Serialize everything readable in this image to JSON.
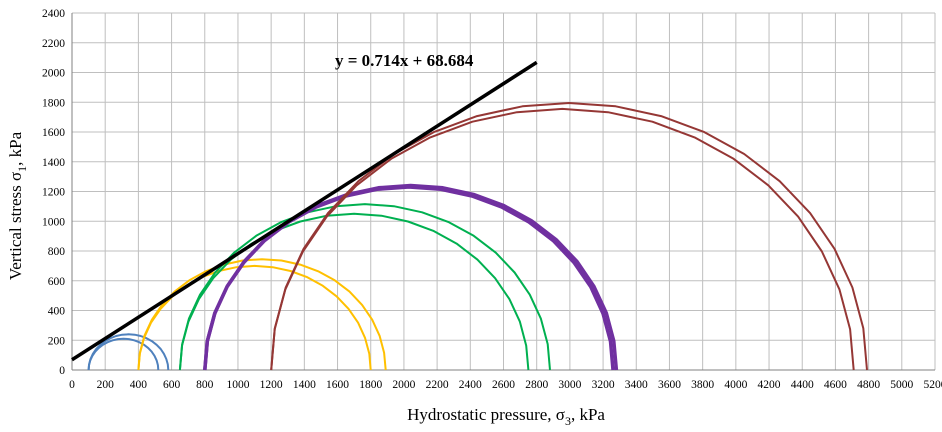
{
  "chart_data": {
    "type": "line",
    "xlabel": {
      "main": "Hydrostatic pressure, σ",
      "sub": "3",
      "unit": ", kPa"
    },
    "ylabel": {
      "main": "Vertical stress σ",
      "sub": "1",
      "unit": ", kPa"
    },
    "xlim": [
      0,
      5200
    ],
    "ylim": [
      0,
      2400
    ],
    "x_ticks": [
      0,
      200,
      400,
      600,
      800,
      1000,
      1200,
      1400,
      1600,
      1800,
      2000,
      2200,
      2400,
      2600,
      2800,
      3000,
      3200,
      3400,
      3600,
      3800,
      4000,
      4200,
      4400,
      4600,
      4800,
      5000,
      5200
    ],
    "y_ticks": [
      0,
      200,
      400,
      600,
      800,
      1000,
      1200,
      1400,
      1600,
      1800,
      2000,
      2200,
      2400
    ],
    "grid": true,
    "legend": "none",
    "fit_line": {
      "label": "y = 0.714x + 68.684",
      "slope": 0.714,
      "intercept": 68.684,
      "x_range": [
        0,
        2800
      ],
      "color": "#000000"
    },
    "series": [
      {
        "color": "#4F81BD",
        "width": 2,
        "circles": [
          {
            "x_left": 100,
            "x_right": 580
          },
          {
            "x_left": 100,
            "x_right": 520
          }
        ]
      },
      {
        "color": "#FFC000",
        "width": 2,
        "circles": [
          {
            "x_left": 400,
            "x_right": 1890
          },
          {
            "x_left": 400,
            "x_right": 1800
          }
        ]
      },
      {
        "color": "#00B050",
        "width": 2,
        "circles": [
          {
            "x_left": 650,
            "x_right": 2880
          },
          {
            "x_left": 650,
            "x_right": 2750
          }
        ]
      },
      {
        "color": "#7030A0",
        "width": 3.5,
        "circles": [
          {
            "x_left": 800,
            "x_right": 3280
          },
          {
            "x_left": 800,
            "x_right": 3260
          }
        ]
      },
      {
        "color": "#953735",
        "width": 2,
        "circles": [
          {
            "x_left": 1200,
            "x_right": 4790
          },
          {
            "x_left": 1200,
            "x_right": 4710
          }
        ]
      }
    ]
  }
}
